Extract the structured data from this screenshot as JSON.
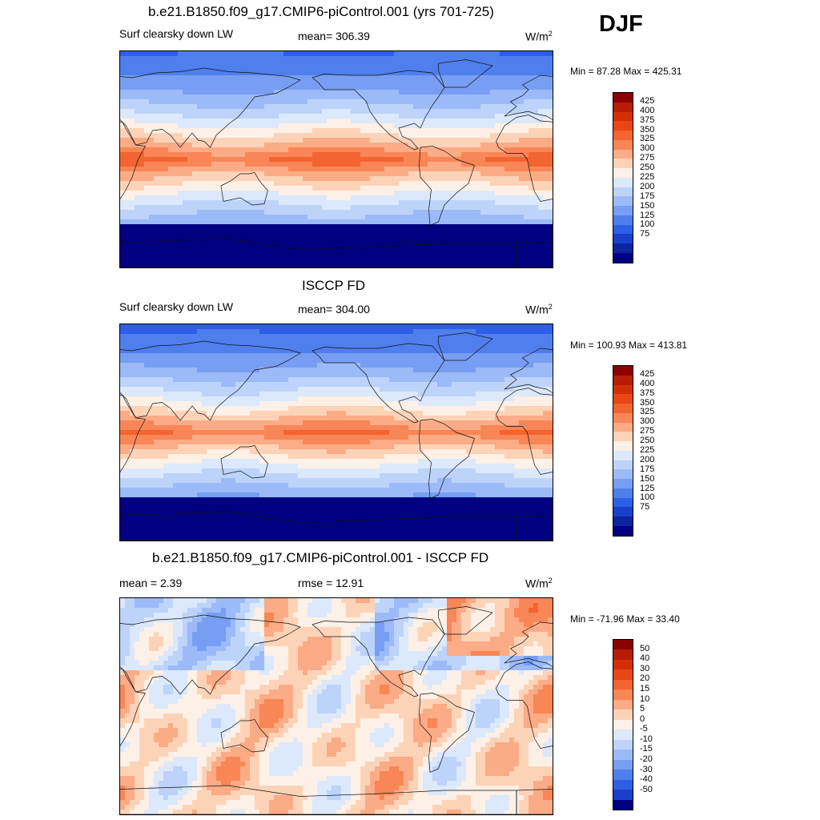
{
  "season": "DJF",
  "panels": [
    {
      "title": "b.e21.B1850.f09_g17.CMIP6-piControl.001 (yrs 701-725)",
      "left_label": "Surf clearsky down LW",
      "center_label": "mean= 306.39",
      "unit_base": "W/m",
      "unit_sup": "2",
      "minmax": "Min =  87.28 Max = 425.31",
      "field": "model"
    },
    {
      "title": "ISCCP FD",
      "left_label": "Surf clearsky down LW",
      "center_label": "mean= 304.00",
      "unit_base": "W/m",
      "unit_sup": "2",
      "minmax": "Min = 100.93 Max = 413.81",
      "field": "obs"
    },
    {
      "title": "b.e21.B1850.f09_g17.CMIP6-piControl.001 - ISCCP FD",
      "left_label": "mean =   2.39",
      "center_label": "rmse =  12.91",
      "unit_base": "W/m",
      "unit_sup": "2",
      "minmax": "Min = -71.96 Max =  33.40",
      "field": "diff"
    }
  ],
  "colorbars": {
    "absolute": {
      "labels": [
        "425",
        "400",
        "375",
        "350",
        "325",
        "300",
        "275",
        "250",
        "225",
        "200",
        "175",
        "150",
        "125",
        "100",
        "75"
      ],
      "colors": [
        "#8b0000",
        "#b81d04",
        "#d32f06",
        "#e84614",
        "#f26431",
        "#f88656",
        "#fbab85",
        "#fdd3b8",
        "#fdf0e6",
        "#dce8fb",
        "#bdd3fa",
        "#9bbaf7",
        "#779ef2",
        "#4f7fec",
        "#2e5fe6",
        "#1a3fcc",
        "#0c24a0",
        "#000080"
      ]
    },
    "difference": {
      "labels": [
        "50",
        "40",
        "30",
        "20",
        "15",
        "10",
        "5",
        "0",
        "-5",
        "-10",
        "-15",
        "-20",
        "-30",
        "-40",
        "-50"
      ],
      "colors": [
        "#8b0000",
        "#b81d04",
        "#d32f06",
        "#e84614",
        "#f26431",
        "#f88656",
        "#fbab85",
        "#fdd3b8",
        "#fdf0e6",
        "#dce8fb",
        "#bdd3fa",
        "#9bbaf7",
        "#779ef2",
        "#4f7fec",
        "#2e5fe6",
        "#1a3fcc",
        "#000080"
      ]
    }
  }
}
